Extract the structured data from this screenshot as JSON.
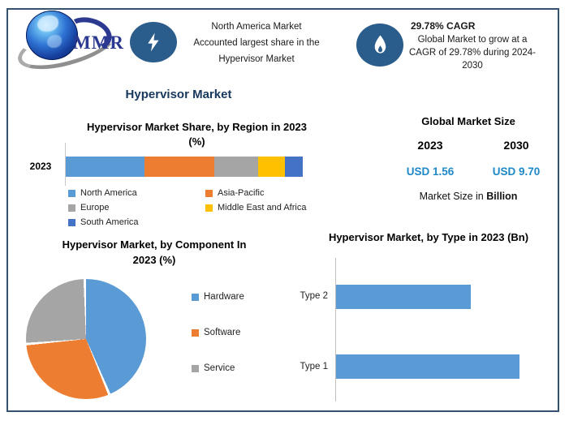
{
  "header": {
    "logo_text": "MMR",
    "region_callout": {
      "lines": [
        "North America Market",
        "Accounted largest share in the",
        "Hypervisor Market"
      ]
    },
    "cagr_callout": {
      "title": "29.78% CAGR",
      "lines": [
        "Global Market to grow at a",
        "CAGR of 29.78% during 2024-",
        "2030"
      ]
    }
  },
  "main_title": "Hypervisor Market",
  "region_chart": {
    "title_line1": "Hypervisor Market Share, by Region in 2023",
    "title_line2": "(%)",
    "category": "2023",
    "segments": [
      {
        "label": "North America",
        "color": "#5B9BD5",
        "percent": 33.2
      },
      {
        "label": "Asia-Pacific",
        "color": "#ED7D31",
        "percent": 29.5
      },
      {
        "label": "Europe",
        "color": "#A5A5A5",
        "percent": 18.5
      },
      {
        "label": "Middle East and Africa",
        "color": "#FFC000",
        "percent": 11.3
      },
      {
        "label": "South America",
        "color": "#4472C4",
        "percent": 7.5
      }
    ]
  },
  "market_size": {
    "title": "Global Market Size",
    "year_left": "2023",
    "year_right": "2030",
    "value_left": "USD 1.56",
    "value_right": "USD 9.70",
    "value_color": "#1E88C7",
    "footnote_prefix": "Market Size in ",
    "footnote_bold": "Billion"
  },
  "component_chart": {
    "title_line1": "Hypervisor Market, by Component In",
    "title_line2": "2023 (%)",
    "slices": [
      {
        "label": "Hardware",
        "color": "#5B9BD5",
        "percent": 44
      },
      {
        "label": "Software",
        "color": "#ED7D31",
        "percent": 30
      },
      {
        "label": "Service",
        "color": "#A5A5A5",
        "percent": 26
      }
    ]
  },
  "type_chart": {
    "title": "Hypervisor Market, by Type in 2023 (Bn)",
    "bar_color": "#5B9BD5",
    "bars": [
      {
        "label": "Type 2",
        "value": 0.66
      },
      {
        "label": "Type 1",
        "value": 0.9
      }
    ]
  },
  "chart_data": [
    {
      "type": "bar",
      "variant": "stacked-horizontal",
      "title": "Hypervisor Market Share, by Region in 2023 (%)",
      "categories": [
        "2023"
      ],
      "series": [
        {
          "name": "North America",
          "values": [
            33.2
          ]
        },
        {
          "name": "Asia-Pacific",
          "values": [
            29.5
          ]
        },
        {
          "name": "Europe",
          "values": [
            18.5
          ]
        },
        {
          "name": "Middle East and Africa",
          "values": [
            11.3
          ]
        },
        {
          "name": "South America",
          "values": [
            7.5
          ]
        }
      ],
      "unit": "%",
      "legend_position": "bottom",
      "values_estimated": true
    },
    {
      "type": "pie",
      "title": "Hypervisor Market, by Component In 2023 (%)",
      "labels": [
        "Hardware",
        "Software",
        "Service"
      ],
      "values": [
        44,
        30,
        26
      ],
      "unit": "%",
      "legend_position": "right",
      "values_estimated": true
    },
    {
      "type": "bar",
      "variant": "horizontal",
      "title": "Hypervisor Market, by Type in 2023 (Bn)",
      "categories": [
        "Type 2",
        "Type 1"
      ],
      "values": [
        0.66,
        0.9
      ],
      "unit": "Bn",
      "values_estimated": true
    }
  ]
}
